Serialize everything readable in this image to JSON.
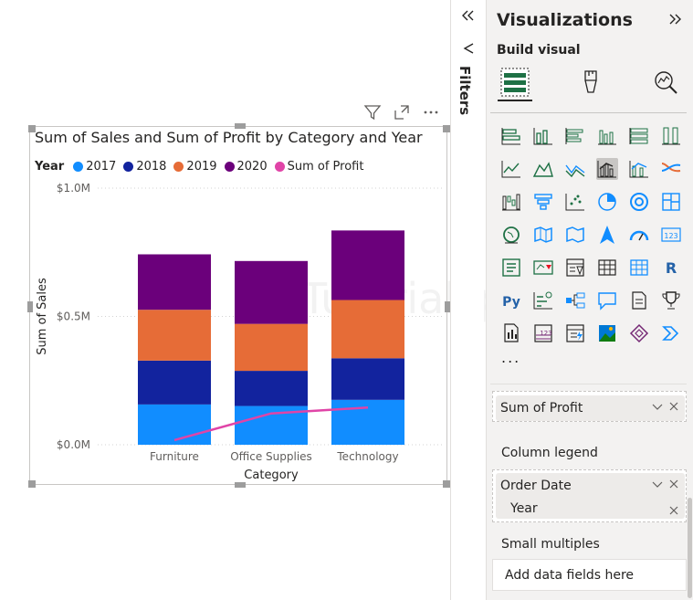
{
  "canvas": {
    "watermark": "Tutorialspoint",
    "toolbar_icons": [
      "filter-icon",
      "focus-mode-icon",
      "more-options-icon"
    ]
  },
  "visual": {
    "title": "Sum of Sales and Sum of Profit by Category and Year",
    "legend_title": "Year",
    "legend": [
      {
        "label": "2017",
        "color": "#118dff"
      },
      {
        "label": "2018",
        "color": "#12239e"
      },
      {
        "label": "2019",
        "color": "#e66c37"
      },
      {
        "label": "2020",
        "color": "#6b007b"
      },
      {
        "label": "Sum of Profit",
        "color": "#e044a7"
      }
    ]
  },
  "chart_data": {
    "type": "bar",
    "stacked": true,
    "categories": [
      "Furniture",
      "Office Supplies",
      "Technology"
    ],
    "series": [
      {
        "name": "2017",
        "values": [
          0.157,
          0.151,
          0.175
        ],
        "color": "#118dff"
      },
      {
        "name": "2018",
        "values": [
          0.171,
          0.137,
          0.162
        ],
        "color": "#12239e"
      },
      {
        "name": "2019",
        "values": [
          0.198,
          0.183,
          0.227
        ],
        "color": "#e66c37"
      },
      {
        "name": "2020",
        "values": [
          0.216,
          0.245,
          0.271
        ],
        "color": "#6b007b"
      }
    ],
    "line_series": {
      "name": "Sum of Profit",
      "values": [
        0.018,
        0.122,
        0.145
      ],
      "color": "#e044a7"
    },
    "xlabel": "Category",
    "ylabel": "Sum of Sales",
    "yticks": [
      "$0.0M",
      "$0.5M",
      "$1.0M"
    ],
    "ytick_values": [
      0,
      0.5,
      1.0
    ],
    "ylim": [
      0,
      1.0
    ],
    "grid": true,
    "legend_position": "top-left"
  },
  "filters": {
    "label": "Filters"
  },
  "pane": {
    "title": "Visualizations",
    "build_label": "Build visual",
    "more_label": "...",
    "wells": {
      "line_values_field": "Sum of Profit",
      "column_legend_label": "Column legend",
      "column_legend_field": "Order Date",
      "column_legend_subfield": "Year",
      "small_multiples_label": "Small multiples",
      "small_multiples_placeholder": "Add data fields here"
    },
    "viz_types": [
      "stacked-bar-chart-icon",
      "stacked-column-chart-icon",
      "clustered-bar-chart-icon",
      "clustered-column-chart-icon",
      "100-stacked-bar-chart-icon",
      "100-stacked-column-chart-icon",
      "line-chart-icon",
      "area-chart-icon",
      "stacked-area-chart-icon",
      "line-and-stacked-column-chart-icon",
      "line-and-clustered-column-chart-icon",
      "ribbon-chart-icon",
      "waterfall-chart-icon",
      "funnel-icon",
      "scatter-chart-icon",
      "pie-chart-icon",
      "donut-chart-icon",
      "treemap-icon",
      "map-icon",
      "filled-map-icon",
      "shape-map-icon",
      "azure-map-icon",
      "gauge-icon",
      "card-icon",
      "multi-row-card-icon",
      "kpi-icon",
      "slicer-icon",
      "table-icon",
      "matrix-icon",
      "r-visual-icon",
      "python-visual-icon",
      "key-influencers-icon",
      "decomposition-tree-icon",
      "qna-icon",
      "smart-narrative-icon",
      "metrics-icon",
      "paginated-report-icon",
      "power-apps-icon",
      "power-automate-icon",
      "arcgis-map-icon",
      "get-more-visuals-icon",
      "power-automate-flow-icon"
    ],
    "r_label": "R",
    "py_label": "Py",
    "card_label": "123"
  }
}
